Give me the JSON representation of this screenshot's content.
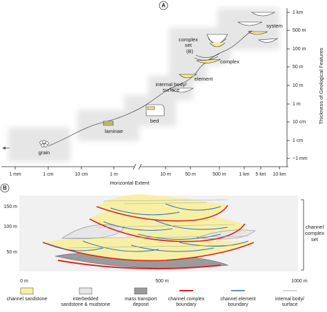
{
  "panel_a": {
    "label": "A",
    "x_axis": {
      "title": "Horizontal Extent",
      "ticks": [
        "1 mm",
        "1 cm",
        "10 cm",
        "1 m",
        "10 m",
        "50 m",
        "500 m",
        "1 km",
        "5 km",
        "10 km"
      ]
    },
    "y_axis": {
      "title": "Thickness of Geological Features",
      "ticks": [
        "1 km",
        "500 m",
        "100 m",
        "50 m",
        "10 m",
        "1 m",
        "10 cm",
        "1 cm",
        "~1 mm"
      ]
    },
    "features": {
      "grain": "grain",
      "laminae": "laminae",
      "bed": "bed",
      "internal_body": [
        "internal body/",
        "surface"
      ],
      "element": "element",
      "complex_set": [
        "complex",
        "set",
        "(B)"
      ],
      "complex": "complex",
      "system": "system"
    }
  },
  "panel_b": {
    "label": "B",
    "y_ticks": [
      "150 m",
      "100 m",
      "50 m"
    ],
    "x_ticks": [
      "0 m",
      "500 m",
      "1000 m"
    ],
    "bracket_label": [
      "channel",
      "complex",
      "set"
    ],
    "legend": [
      [
        "channel sandstone"
      ],
      [
        "interbedded",
        "sandstone & mudstone"
      ],
      [
        "mass transport",
        "deposit"
      ],
      [
        "channel complex",
        "boundary"
      ],
      [
        "channel element",
        "boundary"
      ],
      [
        "internal body/",
        "surface"
      ]
    ]
  }
}
